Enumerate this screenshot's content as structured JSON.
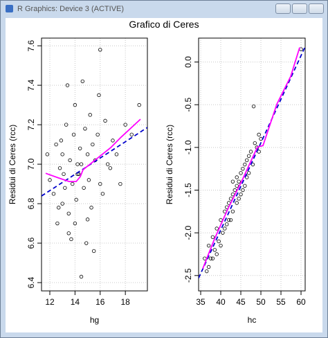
{
  "window_title": "R Graphics: Device 3 (ACTIVE)",
  "title": "Grafico di Ceres",
  "chart_data": [
    {
      "type": "scatter",
      "xlabel": "hg",
      "ylabel": "Residui di Ceres (rcc)",
      "xlim": [
        11.34,
        19.75
      ],
      "ylim": [
        6.358,
        7.639
      ],
      "xticks": [
        12,
        14,
        16,
        18
      ],
      "yticks": [
        6.4,
        6.6,
        6.8,
        {
          "value": 7,
          "label": "7.0"
        },
        7.2,
        7.4,
        7.6
      ],
      "grid": true,
      "color": "#000000",
      "x": [
        11.8,
        12.0,
        12.3,
        12.5,
        12.6,
        12.8,
        12.9,
        13.0,
        13.1,
        13.2,
        13.3,
        13.4,
        13.5,
        13.6,
        13.7,
        13.8,
        13.9,
        14.0,
        14.0,
        14.1,
        14.2,
        14.3,
        14.4,
        14.5,
        14.6,
        14.7,
        14.8,
        14.9,
        15.0,
        15.1,
        15.2,
        15.3,
        15.4,
        15.5,
        15.6,
        15.8,
        16.0,
        16.2,
        16.4,
        16.6,
        16.8,
        17.0,
        17.3,
        17.6,
        18.0,
        18.5,
        19.1,
        13.5,
        14.2,
        15.9,
        14.5,
        13.0,
        12.7,
        15.0,
        16.0
      ],
      "y": [
        7.05,
        6.92,
        6.85,
        7.1,
        6.7,
        6.98,
        7.12,
        6.8,
        6.95,
        6.88,
        7.2,
        7.4,
        6.75,
        7.02,
        6.62,
        6.9,
        7.15,
        6.7,
        7.3,
        6.82,
        7.0,
        6.95,
        7.08,
        6.43,
        7.42,
        6.88,
        7.18,
        6.6,
        7.05,
        6.92,
        7.25,
        6.78,
        7.1,
        6.56,
        7.02,
        7.15,
        7.58,
        6.85,
        7.22,
        7.0,
        6.98,
        7.12,
        7.05,
        6.9,
        7.2,
        7.15,
        7.3,
        6.65,
        6.95,
        7.35,
        7.0,
        7.05,
        6.78,
        6.72,
        6.9
      ],
      "lines": [
        {
          "color": "#0000cc",
          "style": "dashed",
          "x": [
            11.34,
            19.75
          ],
          "y": [
            6.839,
            7.186
          ]
        },
        {
          "color": "#ff00ff",
          "style": "solid",
          "x": [
            11.67,
            12.71,
            13.54,
            14.09,
            14.42,
            14.64,
            15.19,
            16.01,
            16.84,
            17.66,
            19.2
          ],
          "y": [
            6.954,
            6.93,
            6.912,
            6.912,
            6.937,
            6.972,
            7.0,
            7.042,
            7.084,
            7.137,
            7.228
          ]
        }
      ]
    },
    {
      "type": "scatter",
      "xlabel": "hc",
      "ylabel": "Residui di Ceres (rcc)",
      "xlim": [
        34.48,
        61.03
      ],
      "ylim": [
        -2.68,
        0.28
      ],
      "xticks": [
        35,
        40,
        45,
        50,
        55,
        60
      ],
      "yticks": [
        -2.5,
        {
          "value": -2,
          "label": "-2.0"
        },
        -1.5,
        {
          "value": -1,
          "label": "-1.0"
        },
        -0.5,
        {
          "value": 0,
          "label": "0.0"
        }
      ],
      "grid": true,
      "color": "#000000",
      "x": [
        36.0,
        36.5,
        37.0,
        37.5,
        38.0,
        38.5,
        39.0,
        39.5,
        40.0,
        40.5,
        41.0,
        41.5,
        42.0,
        42.0,
        42.5,
        43.0,
        43.0,
        43.5,
        44.0,
        44.0,
        44.5,
        45.0,
        45.0,
        45.5,
        46.0,
        46.0,
        46.5,
        47.0,
        47.5,
        48.0,
        48.5,
        49.0,
        49.5,
        50.0,
        48.2,
        60.0,
        38.0,
        40.0,
        41.0,
        43.0,
        44.5,
        45.5,
        47.0,
        39.0,
        42.5,
        46.5,
        37.0,
        44.0,
        49.5,
        41.5
      ],
      "y": [
        -2.3,
        -2.45,
        -2.15,
        -2.3,
        -2.05,
        -2.2,
        -1.95,
        -2.1,
        -1.85,
        -2.0,
        -1.75,
        -1.9,
        -1.65,
        -1.85,
        -1.6,
        -1.55,
        -1.75,
        -1.5,
        -1.45,
        -1.65,
        -1.4,
        -1.3,
        -1.55,
        -1.25,
        -1.2,
        -1.45,
        -1.15,
        -1.1,
        -1.05,
        -1.2,
        -0.95,
        -1.0,
        -0.85,
        -0.9,
        -0.52,
        0.15,
        -2.3,
        -2.15,
        -1.95,
        -1.4,
        -1.6,
        -1.5,
        -1.3,
        -2.25,
        -1.85,
        -1.35,
        -2.4,
        -1.35,
        -1.05,
        -1.7
      ],
      "lines": [
        {
          "color": "#0000cc",
          "style": "dashed",
          "x": [
            34.48,
            61.03
          ],
          "y": [
            -2.53,
            0.18
          ]
        },
        {
          "color": "#ff00ff",
          "style": "solid",
          "x": [
            35.52,
            38.45,
            41.9,
            45.34,
            49.14,
            50.52,
            53.97,
            57.41,
            59.66
          ],
          "y": [
            -2.419,
            -2.071,
            -1.707,
            -1.383,
            -0.995,
            -0.979,
            -0.494,
            -0.17,
            0.17
          ]
        }
      ]
    }
  ]
}
